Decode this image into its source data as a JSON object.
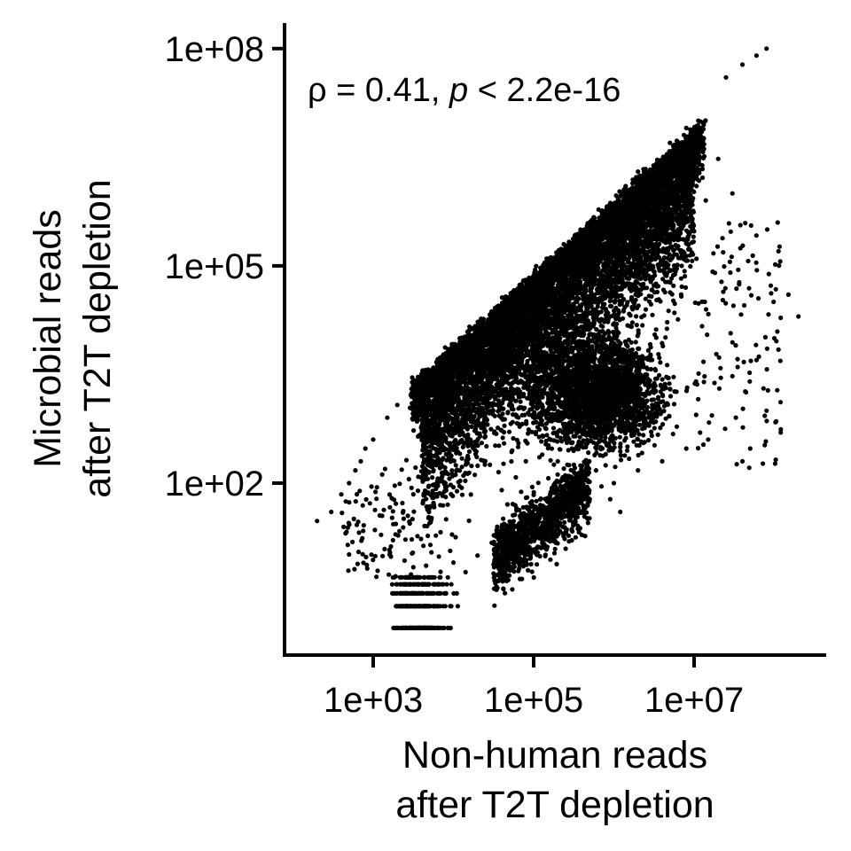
{
  "chart_data": {
    "type": "scatter",
    "scale": {
      "x": "log10",
      "y": "log10"
    },
    "xlim": [
      50,
      500000000
    ],
    "ylim": [
      1,
      300000000
    ],
    "x_ticks": [
      {
        "value": 1000,
        "label": "1e+03"
      },
      {
        "value": 100000,
        "label": "1e+05"
      },
      {
        "value": 10000000,
        "label": "1e+07"
      }
    ],
    "y_ticks": [
      {
        "value": 100,
        "label": "1e+02"
      },
      {
        "value": 100000,
        "label": "1e+05"
      },
      {
        "value": 100000000,
        "label": "1e+08"
      }
    ],
    "xlabel_lines": [
      "Non-human reads",
      "after T2T depletion"
    ],
    "ylabel_lines": [
      "Microbial reads",
      "after T2T depletion"
    ],
    "annotation": {
      "rho_symbol": "ρ",
      "rho_text": " = 0.41, ",
      "p_symbol": "p",
      "p_text": " < 2.2e-16"
    },
    "grid": false,
    "legend": "none",
    "point_color": "#000000",
    "series": [
      {
        "points": [
          [
            25000000,
            40000000
          ],
          [
            40000000,
            60000000
          ],
          [
            60000000,
            80000000
          ],
          [
            80000000,
            100000000
          ],
          [
            2000000,
            2000000
          ],
          [
            5000000,
            5000000
          ],
          [
            8000000,
            8000000
          ],
          [
            12000000,
            8000000
          ],
          [
            14000000,
            800000
          ],
          [
            10000000,
            300000
          ],
          [
            20000000,
            3000000
          ],
          [
            30000000,
            1000000
          ],
          [
            150000000,
            40000
          ],
          [
            200000000,
            20000
          ],
          [
            100000000,
            10000
          ],
          [
            60000000,
            5000
          ],
          [
            30000000,
            3000
          ],
          [
            80000000,
            1000
          ],
          [
            120000000,
            500
          ],
          [
            50000000,
            300
          ],
          [
            40000000,
            200
          ],
          [
            15000000,
            400
          ],
          [
            8000000,
            300
          ],
          [
            4000000,
            200
          ],
          [
            2000000,
            150
          ],
          [
            1000000,
            100
          ],
          [
            500000,
            60
          ],
          [
            200000,
            40
          ],
          [
            100000,
            30
          ],
          [
            50000,
            20
          ],
          [
            30000,
            15
          ],
          [
            20000,
            10
          ],
          [
            10000,
            8
          ],
          [
            5000,
            5
          ],
          [
            3000,
            3
          ],
          [
            80,
            1
          ],
          [
            200,
            30
          ],
          [
            300,
            40
          ],
          [
            400,
            70
          ],
          [
            500,
            100
          ],
          [
            600,
            150
          ],
          [
            700,
            200
          ],
          [
            800,
            300
          ],
          [
            1000,
            400
          ],
          [
            1500,
            800
          ],
          [
            2000,
            1200
          ],
          [
            3000,
            2000
          ],
          [
            5000,
            3000
          ],
          [
            8000,
            5000
          ],
          [
            10000,
            7000
          ],
          [
            15000,
            10000
          ],
          [
            20000,
            15000
          ],
          [
            30000,
            20000
          ],
          [
            50000,
            30000
          ],
          [
            80000,
            50000
          ],
          [
            100000,
            70000
          ],
          [
            200000,
            100000
          ],
          [
            300000,
            150000
          ],
          [
            500000,
            200000
          ],
          [
            1000000,
            500000
          ],
          [
            3000000,
            1000000
          ],
          [
            5000000,
            2000000
          ],
          [
            200000,
            200
          ],
          [
            300000,
            300
          ],
          [
            500000,
            500
          ],
          [
            1000000,
            800
          ],
          [
            3000000,
            1200
          ],
          [
            5000000,
            2000
          ],
          [
            2000000,
            400
          ],
          [
            700000,
            90
          ],
          [
            900000,
            60
          ],
          [
            1200000,
            40
          ],
          [
            40000,
            80
          ],
          [
            60000,
            120
          ],
          [
            80000,
            200
          ],
          [
            120000,
            40
          ],
          [
            150000,
            25
          ],
          [
            250000,
            60
          ],
          [
            400000,
            100
          ],
          [
            600000,
            150
          ]
        ]
      }
    ]
  }
}
